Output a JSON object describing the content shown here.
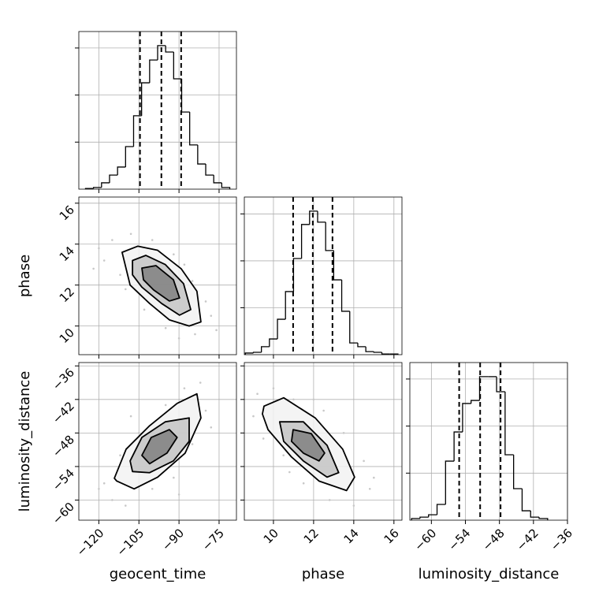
{
  "chart_data": [
    {
      "type": "histogram",
      "color": "#000000",
      "grid": true,
      "bins": [
        -125,
        -122,
        -119,
        -116,
        -113,
        -110,
        -107,
        -104,
        -101,
        -98,
        -95,
        -92,
        -89,
        -86,
        -83,
        -80,
        -77,
        -74,
        -71
      ],
      "values": [
        3,
        7,
        27,
        60,
        94,
        181,
        312,
        452,
        549,
        610,
        583,
        469,
        328,
        188,
        107,
        60,
        27,
        7
      ],
      "quantiles": [
        -104.6,
        -96.6,
        -89.2
      ],
      "xlim": [
        -127.5,
        -68.5
      ],
      "xticks": [
        -120,
        -105,
        -90,
        -75
      ],
      "ylim": [
        0,
        670
      ],
      "yticks": [
        200,
        400,
        600
      ]
    },
    {
      "type": "contour",
      "grid": true,
      "fills": [
        "#f2f2f2",
        "#c4c4c4",
        "#808080"
      ],
      "point_color": "#c8c8c8",
      "contours": [
        {
          "x": [
            -111.3,
            -105.4,
            -98.0,
            -89.2,
            -83.3,
            -81.8,
            -86.2,
            -93.6,
            -101.0,
            -108.3
          ],
          "y": [
            13.6,
            13.9,
            13.7,
            12.8,
            11.7,
            10.2,
            10.0,
            10.3,
            11.1,
            12.0
          ]
        },
        {
          "x": [
            -107.4,
            -102.4,
            -95.1,
            -88.3,
            -85.6,
            -89.8,
            -96.5,
            -103.9,
            -107.4
          ],
          "y": [
            13.2,
            13.45,
            13.0,
            12.07,
            10.8,
            10.53,
            11.1,
            11.9,
            12.5
          ]
        },
        {
          "x": [
            -103.9,
            -98.6,
            -92.1,
            -89.8,
            -93.6,
            -99.5,
            -103.3
          ],
          "y": [
            12.83,
            12.95,
            12.26,
            11.37,
            11.22,
            11.76,
            12.26
          ]
        }
      ],
      "points_x": [
        -118,
        -115,
        -112,
        -120,
        -108,
        -100,
        -92,
        -85,
        -80,
        -78,
        -84,
        -90,
        -95,
        -103,
        -110,
        -122,
        -76,
        -88
      ],
      "points_y": [
        13.2,
        14.2,
        12.5,
        13.8,
        14.5,
        14.2,
        13.5,
        12.2,
        11.2,
        10.5,
        9.6,
        9.4,
        9.9,
        10.8,
        11.8,
        12.8,
        9.8,
        13.0
      ],
      "ylabel": "phase",
      "xlim": [
        -127.5,
        -68.5
      ],
      "xticks": [
        -120,
        -105,
        -90,
        -75
      ],
      "ylim": [
        8.6,
        16.3
      ],
      "yticks": [
        10,
        12,
        14,
        16
      ]
    },
    {
      "type": "histogram",
      "color": "#000000",
      "grid": true,
      "bins": [
        8.6,
        9.0,
        9.4,
        9.8,
        10.2,
        10.6,
        11.0,
        11.4,
        11.8,
        12.2,
        12.6,
        13.0,
        13.4,
        13.8,
        14.2,
        14.6,
        15.0,
        15.4,
        15.8,
        16.2
      ],
      "values": [
        7,
        10,
        34,
        67,
        151,
        269,
        410,
        555,
        612,
        565,
        444,
        319,
        185,
        50,
        34,
        13,
        10,
        3,
        3
      ],
      "quantiles": [
        10.98,
        11.96,
        12.94
      ],
      "xlim": [
        8.55,
        16.4
      ],
      "xticks": [
        10,
        12,
        14,
        16
      ],
      "ylim": [
        0,
        672
      ],
      "yticks": [
        200,
        400,
        600
      ]
    },
    {
      "type": "contour",
      "grid": true,
      "fills": [
        "#f2f2f2",
        "#c4c4c4",
        "#808080"
      ],
      "point_color": "#c8c8c8",
      "contours": [
        {
          "x": [
            -114.2,
            -109.8,
            -101.0,
            -90.7,
            -83.3,
            -81.8,
            -87.7,
            -98.0,
            -106.8,
            -113.3
          ],
          "y": [
            -56.1,
            -50.9,
            -46.7,
            -42.7,
            -41.0,
            -45.3,
            -51.6,
            -55.9,
            -58.0,
            -56.6
          ]
        },
        {
          "x": [
            -108.3,
            -103.9,
            -95.1,
            -86.2,
            -86.2,
            -92.1,
            -101.0,
            -107.4
          ],
          "y": [
            -53.0,
            -48.8,
            -46.0,
            -45.3,
            -49.5,
            -53.0,
            -55.1,
            -54.9
          ]
        },
        {
          "x": [
            -103.9,
            -100.4,
            -93.6,
            -90.7,
            -94.5,
            -101.0
          ],
          "y": [
            -52.0,
            -48.8,
            -47.4,
            -48.8,
            -51.6,
            -53.5
          ]
        }
      ],
      "points_x": [
        -118,
        -115,
        -110,
        -100,
        -92,
        -85,
        -80,
        -82,
        -88,
        -95,
        -105,
        -112,
        -120,
        -78,
        -90,
        -108
      ],
      "points_y": [
        -57,
        -60,
        -61,
        -58,
        -56,
        -50,
        -44,
        -39,
        -40,
        -43,
        -48,
        -52,
        -58,
        -47,
        -59,
        -45
      ],
      "xlabel": "geocent_time",
      "ylabel": "luminosity_distance",
      "xlim": [
        -127.5,
        -68.5
      ],
      "xticks": [
        {
          "value": -120,
          "label": "−120"
        },
        {
          "value": -105,
          "label": "−105"
        },
        {
          "value": -90,
          "label": "−90"
        },
        {
          "value": -75,
          "label": "−75"
        }
      ],
      "ylim": [
        -63.6,
        -35.4
      ],
      "yticks": [
        {
          "value": -60,
          "label": "−60"
        },
        {
          "value": -54,
          "label": "−54"
        },
        {
          "value": -48,
          "label": "−48"
        },
        {
          "value": -42,
          "label": "−42"
        },
        {
          "value": -36,
          "label": "−36"
        }
      ]
    },
    {
      "type": "contour",
      "grid": true,
      "fills": [
        "#f2f2f2",
        "#c4c4c4",
        "#808080"
      ],
      "point_color": "#c8c8c8",
      "contours": [
        {
          "x": [
            9.53,
            10.51,
            12.08,
            13.45,
            14.04,
            13.64,
            12.27,
            10.9,
            9.73,
            9.45
          ],
          "y": [
            -43.2,
            -41.7,
            -45.3,
            -50.9,
            -55.9,
            -58.3,
            -56.6,
            -52.3,
            -47.4,
            -44.6
          ]
        },
        {
          "x": [
            10.31,
            11.49,
            12.67,
            13.25,
            12.67,
            11.49,
            10.51
          ],
          "y": [
            -46.0,
            -46.0,
            -50.2,
            -55.1,
            -55.9,
            -53.0,
            -49.5
          ]
        },
        {
          "x": [
            10.98,
            11.88,
            12.55,
            12.27,
            11.49,
            10.9
          ],
          "y": [
            -47.4,
            -48.1,
            -51.6,
            -53.0,
            -51.6,
            -49.5
          ]
        }
      ],
      "points_x": [
        9.2,
        9.0,
        10,
        11,
        12.5,
        13.5,
        14.5,
        14.8,
        14,
        12.8,
        11.5,
        10.5,
        9.5,
        15,
        12,
        10.8
      ],
      "points_y": [
        -41,
        -45,
        -40,
        -42,
        -44,
        -48,
        -53,
        -58,
        -61,
        -60,
        -57,
        -52,
        -49,
        -56,
        -42,
        -55
      ],
      "xlabel": "phase",
      "xlim": [
        8.55,
        16.4
      ],
      "xticks": [
        10,
        12,
        14,
        16
      ],
      "ylim": [
        -63.6,
        -35.4
      ],
      "yticks": [
        -60,
        -54,
        -48,
        -42,
        -36
      ]
    },
    {
      "type": "histogram",
      "color": "#000000",
      "grid": true,
      "bins": [
        -63.5,
        -62,
        -60.5,
        -59,
        -57.5,
        -56,
        -54.5,
        -53,
        -51.5,
        -50,
        -48.5,
        -47,
        -45.5,
        -44,
        -42.5,
        -41,
        -39.5
      ],
      "values": [
        7,
        13,
        23,
        67,
        251,
        375,
        496,
        509,
        610,
        610,
        546,
        278,
        134,
        40,
        13,
        7
      ],
      "quantiles": [
        -55.1,
        -51.4,
        -47.8
      ],
      "xlabel": "luminosity_distance",
      "xlim": [
        -63.8,
        -36
      ],
      "xticks": [
        {
          "value": -60,
          "label": "−60"
        },
        {
          "value": -54,
          "label": "−54"
        },
        {
          "value": -48,
          "label": "−48"
        },
        {
          "value": -42,
          "label": "−42"
        },
        {
          "value": -36,
          "label": "−36"
        }
      ],
      "ylim": [
        0,
        670
      ],
      "yticks": [
        200,
        400,
        600
      ]
    }
  ]
}
